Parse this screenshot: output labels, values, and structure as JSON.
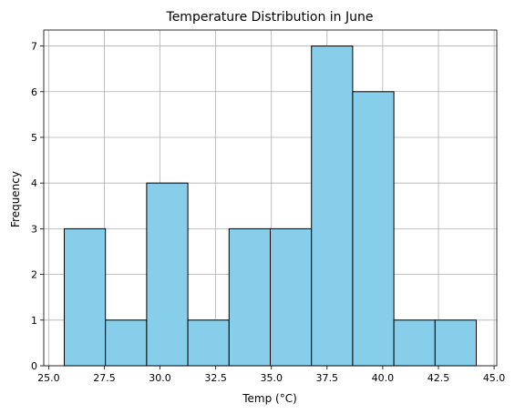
{
  "chart_data": {
    "type": "bar",
    "title": "Temperature Distribution in June",
    "xlabel": "Temp (°C)",
    "ylabel": "Frequency",
    "bins": [
      {
        "start": 25.7,
        "end": 27.55,
        "count": 3
      },
      {
        "start": 27.55,
        "end": 29.4,
        "count": 1
      },
      {
        "start": 29.4,
        "end": 31.25,
        "count": 4
      },
      {
        "start": 31.25,
        "end": 33.1,
        "count": 1
      },
      {
        "start": 33.1,
        "end": 34.95,
        "count": 3
      },
      {
        "start": 34.95,
        "end": 36.8,
        "count": 3
      },
      {
        "start": 36.8,
        "end": 38.65,
        "count": 7
      },
      {
        "start": 38.65,
        "end": 40.5,
        "count": 6
      },
      {
        "start": 40.5,
        "end": 42.35,
        "count": 1
      },
      {
        "start": 42.35,
        "end": 44.2,
        "count": 1
      }
    ],
    "xlim": [
      24.78,
      45.12
    ],
    "ylim": [
      0,
      7.35
    ],
    "xticks": [
      25.0,
      27.5,
      30.0,
      32.5,
      35.0,
      37.5,
      40.0,
      42.5,
      45.0
    ],
    "xtick_labels": [
      "25.0",
      "27.5",
      "30.0",
      "32.5",
      "35.0",
      "37.5",
      "40.0",
      "42.5",
      "45.0"
    ],
    "yticks": [
      0,
      1,
      2,
      3,
      4,
      5,
      6,
      7
    ],
    "ytick_labels": [
      "0",
      "1",
      "2",
      "3",
      "4",
      "5",
      "6",
      "7"
    ],
    "grid": true,
    "bar_color": "#87CEEB",
    "edge_color": "#000000",
    "grid_color": "#b0b0b0"
  }
}
